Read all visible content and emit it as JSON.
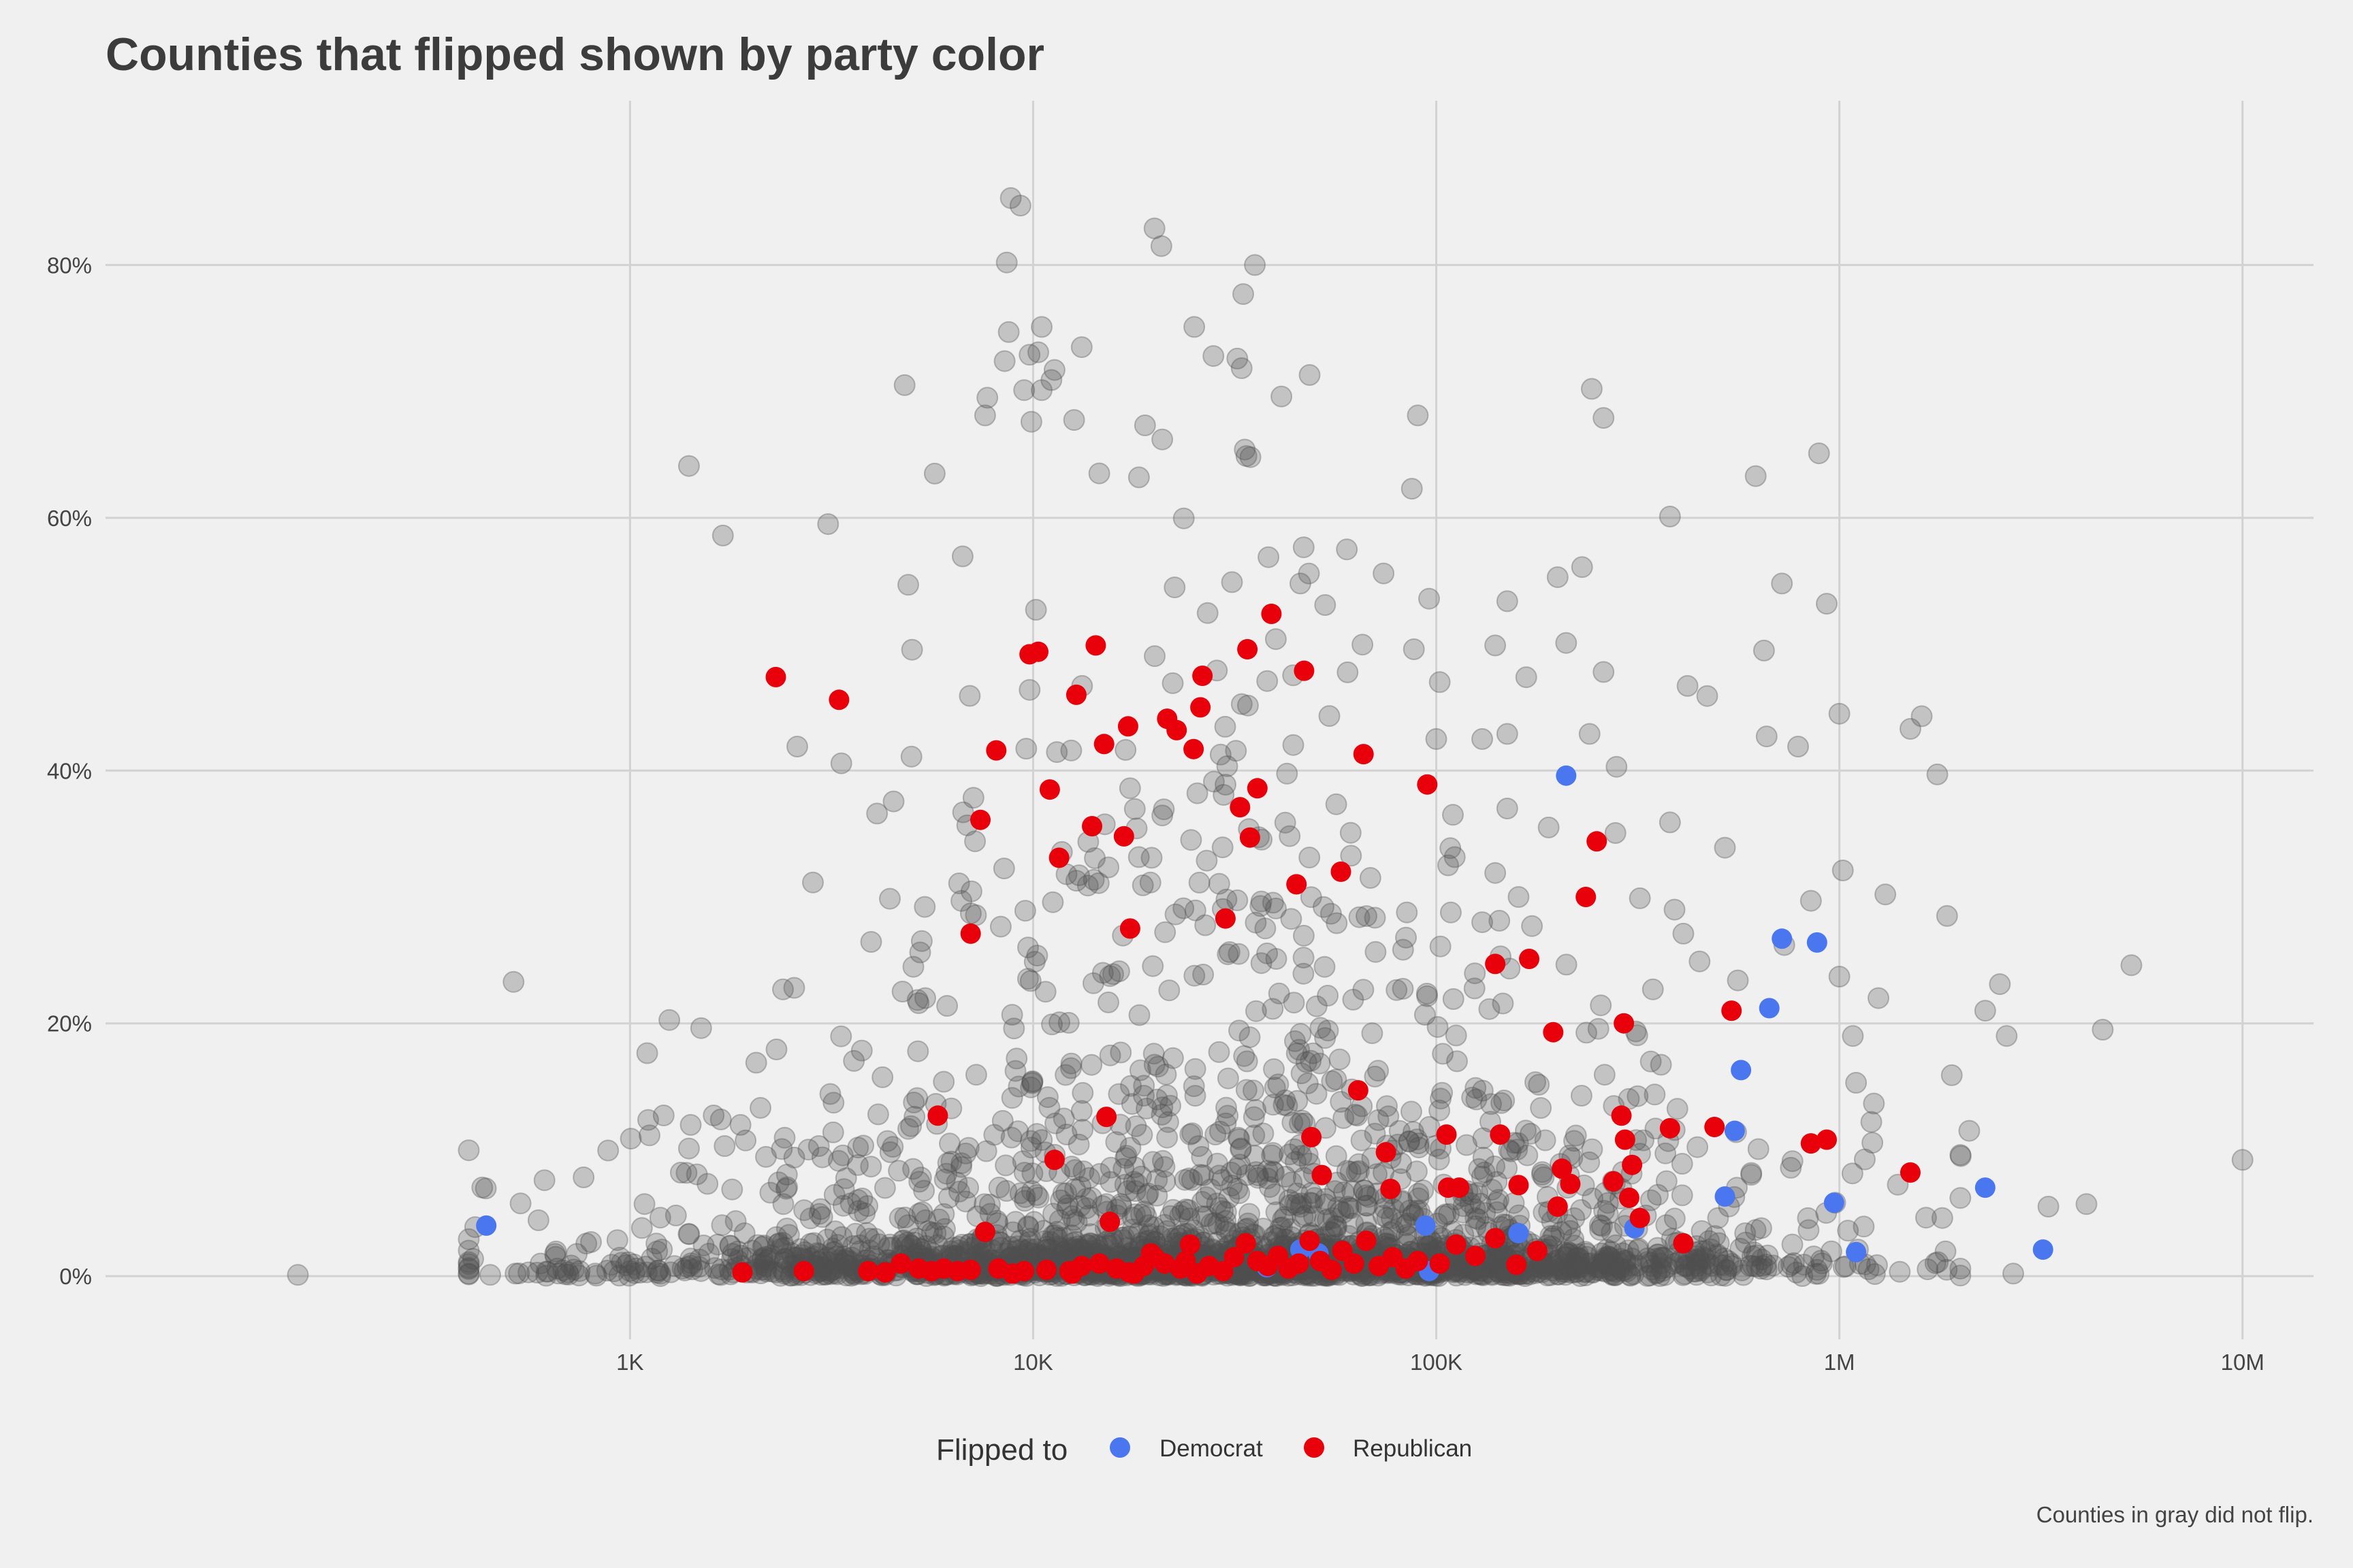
{
  "chart_data": {
    "type": "scatter",
    "title": "Counties that flipped shown by party color",
    "caption": "Counties in gray did not flip.",
    "x_scale": "log10",
    "xlim": [
      50,
      15000000
    ],
    "ylim": [
      -0.05,
      0.93
    ],
    "x_ticks": [
      {
        "value": 1000,
        "label": "1K"
      },
      {
        "value": 10000,
        "label": "10K"
      },
      {
        "value": 100000,
        "label": "100K"
      },
      {
        "value": 1000000,
        "label": "1M"
      },
      {
        "value": 10000000,
        "label": "10M"
      }
    ],
    "y_ticks": [
      {
        "value": 0,
        "label": "0%"
      },
      {
        "value": 0.2,
        "label": "20%"
      },
      {
        "value": 0.4,
        "label": "40%"
      },
      {
        "value": 0.6,
        "label": "60%"
      },
      {
        "value": 0.8,
        "label": "80%"
      }
    ],
    "grid": true,
    "legend": {
      "title": "Flipped to",
      "position": "bottom",
      "entries": [
        {
          "label": "Democrat",
          "color": "#4a76f0"
        },
        {
          "label": "Republican",
          "color": "#e8000b"
        }
      ]
    },
    "colors": {
      "not_flipped": "#505050",
      "Democrat": "#4a76f0",
      "Republican": "#e8000b"
    },
    "series": [
      {
        "name": "Democrat",
        "points": [
          [
            440,
            0.04
          ],
          [
            38000,
            0.007
          ],
          [
            46000,
            0.021
          ],
          [
            51000,
            0.018
          ],
          [
            94000,
            0.04
          ],
          [
            96000,
            0.004
          ],
          [
            160000,
            0.034
          ],
          [
            210000,
            0.396
          ],
          [
            310000,
            0.038
          ],
          [
            520000,
            0.063
          ],
          [
            550000,
            0.115
          ],
          [
            570000,
            0.163
          ],
          [
            670000,
            0.212
          ],
          [
            720000,
            0.267
          ],
          [
            880000,
            0.264
          ],
          [
            970000,
            0.058
          ],
          [
            1100000,
            0.019
          ],
          [
            2300000,
            0.07
          ],
          [
            3200000,
            0.021
          ]
        ]
      },
      {
        "name": "Republican",
        "points": [
          [
            2300,
            0.474
          ],
          [
            3300,
            0.456
          ],
          [
            5800,
            0.127
          ],
          [
            7000,
            0.271
          ],
          [
            7400,
            0.361
          ],
          [
            7600,
            0.035
          ],
          [
            8100,
            0.416
          ],
          [
            9800,
            0.492
          ],
          [
            10300,
            0.494
          ],
          [
            11000,
            0.385
          ],
          [
            11300,
            0.092
          ],
          [
            11600,
            0.331
          ],
          [
            12800,
            0.46
          ],
          [
            14000,
            0.356
          ],
          [
            14300,
            0.499
          ],
          [
            15000,
            0.421
          ],
          [
            15200,
            0.126
          ],
          [
            15500,
            0.043
          ],
          [
            16800,
            0.348
          ],
          [
            17200,
            0.435
          ],
          [
            17400,
            0.275
          ],
          [
            21500,
            0.441
          ],
          [
            22700,
            0.432
          ],
          [
            25000,
            0.417
          ],
          [
            26000,
            0.45
          ],
          [
            26300,
            0.475
          ],
          [
            30000,
            0.283
          ],
          [
            32600,
            0.371
          ],
          [
            34000,
            0.496
          ],
          [
            34500,
            0.347
          ],
          [
            36000,
            0.386
          ],
          [
            39000,
            0.524
          ],
          [
            45000,
            0.31
          ],
          [
            47000,
            0.479
          ],
          [
            49000,
            0.11
          ],
          [
            52000,
            0.08
          ],
          [
            58000,
            0.32
          ],
          [
            64000,
            0.147
          ],
          [
            66000,
            0.413
          ],
          [
            75000,
            0.098
          ],
          [
            77000,
            0.069
          ],
          [
            95000,
            0.389
          ],
          [
            106000,
            0.112
          ],
          [
            107000,
            0.07
          ],
          [
            114000,
            0.07
          ],
          [
            140000,
            0.247
          ],
          [
            144000,
            0.112
          ],
          [
            160000,
            0.072
          ],
          [
            170000,
            0.251
          ],
          [
            195000,
            0.193
          ],
          [
            200000,
            0.055
          ],
          [
            205000,
            0.085
          ],
          [
            215000,
            0.073
          ],
          [
            235000,
            0.3
          ],
          [
            250000,
            0.344
          ],
          [
            275000,
            0.075
          ],
          [
            288000,
            0.127
          ],
          [
            292000,
            0.2
          ],
          [
            294000,
            0.108
          ],
          [
            301000,
            0.062
          ],
          [
            306000,
            0.088
          ],
          [
            320000,
            0.046
          ],
          [
            380000,
            0.117
          ],
          [
            410000,
            0.026
          ],
          [
            490000,
            0.118
          ],
          [
            540000,
            0.21
          ],
          [
            850000,
            0.105
          ],
          [
            930000,
            0.108
          ],
          [
            1500000,
            0.082
          ],
          [
            1900,
            0.003
          ],
          [
            2700,
            0.004
          ],
          [
            3900,
            0.004
          ],
          [
            4300,
            0.003
          ],
          [
            4700,
            0.01
          ],
          [
            5200,
            0.006
          ],
          [
            5600,
            0.004
          ],
          [
            6000,
            0.006
          ],
          [
            6500,
            0.004
          ],
          [
            7000,
            0.005
          ],
          [
            8200,
            0.006
          ],
          [
            9500,
            0.004
          ],
          [
            10800,
            0.005
          ],
          [
            12300,
            0.004
          ],
          [
            13200,
            0.008
          ],
          [
            14600,
            0.01
          ],
          [
            16100,
            0.006
          ],
          [
            17300,
            0.003
          ],
          [
            18800,
            0.008
          ],
          [
            20000,
            0.015
          ],
          [
            21200,
            0.01
          ],
          [
            23200,
            0.006
          ],
          [
            24500,
            0.025
          ],
          [
            27300,
            0.008
          ],
          [
            29600,
            0.004
          ],
          [
            31500,
            0.015
          ],
          [
            33700,
            0.026
          ],
          [
            36000,
            0.012
          ],
          [
            38200,
            0.008
          ],
          [
            40500,
            0.016
          ],
          [
            43000,
            0.006
          ],
          [
            45600,
            0.01
          ],
          [
            48500,
            0.028
          ],
          [
            51500,
            0.012
          ],
          [
            55000,
            0.005
          ],
          [
            58500,
            0.02
          ],
          [
            62500,
            0.01
          ],
          [
            67000,
            0.028
          ],
          [
            72000,
            0.008
          ],
          [
            78000,
            0.015
          ],
          [
            84000,
            0.006
          ],
          [
            90000,
            0.012
          ],
          [
            102000,
            0.01
          ],
          [
            112000,
            0.025
          ],
          [
            125000,
            0.016
          ],
          [
            140000,
            0.03
          ],
          [
            158000,
            0.009
          ],
          [
            178000,
            0.02
          ],
          [
            12500,
            0.002
          ],
          [
            17800,
            0.002
          ],
          [
            25500,
            0.002
          ],
          [
            8900,
            0.002
          ],
          [
            19600,
            0.018
          ],
          [
            23900,
            0.012
          ]
        ]
      }
    ],
    "background_series": {
      "name": "",
      "x_distribution": {
        "log10_mean": 4.45,
        "log10_sd": 0.65
      },
      "sample_points": [
        [
          8800,
          0.853
        ],
        [
          9300,
          0.847
        ],
        [
          8600,
          0.802
        ],
        [
          20000,
          0.829
        ],
        [
          20800,
          0.815
        ],
        [
          33200,
          0.777
        ],
        [
          8700,
          0.747
        ],
        [
          10500,
          0.751
        ],
        [
          10300,
          0.731
        ],
        [
          11300,
          0.717
        ],
        [
          11100,
          0.709
        ],
        [
          13200,
          0.735
        ],
        [
          25100,
          0.751
        ],
        [
          28000,
          0.728
        ],
        [
          32100,
          0.726
        ],
        [
          8500,
          0.724
        ],
        [
          9800,
          0.729
        ],
        [
          4800,
          0.705
        ],
        [
          7700,
          0.695
        ],
        [
          7600,
          0.681
        ],
        [
          9500,
          0.701
        ],
        [
          10500,
          0.701
        ],
        [
          9900,
          0.676
        ],
        [
          41300,
          0.696
        ],
        [
          48500,
          0.713
        ],
        [
          243000,
          0.702
        ],
        [
          260000,
          0.679
        ],
        [
          90000,
          0.681
        ],
        [
          1400,
          0.641
        ],
        [
          1700,
          0.586
        ],
        [
          3100,
          0.595
        ],
        [
          620000,
          0.633
        ],
        [
          890000,
          0.651
        ],
        [
          380000,
          0.601
        ],
        [
          5700,
          0.635
        ],
        [
          33500,
          0.654
        ],
        [
          34600,
          0.648
        ],
        [
          18300,
          0.632
        ],
        [
          87000,
          0.623
        ],
        [
          4900,
          0.547
        ],
        [
          1400,
          0.101
        ],
        [
          4100,
          0.366
        ],
        [
          2600,
          0.419
        ],
        [
          5200,
          0.216
        ],
        [
          5400,
          0.22
        ],
        [
          3000,
          0.094
        ],
        [
          2400,
          0.057
        ],
        [
          1300,
          0.048
        ],
        [
          800,
          0.027
        ],
        [
          150,
          0.001
        ],
        [
          450,
          0.001
        ],
        [
          520,
          0.002
        ],
        [
          560,
          0.003
        ],
        [
          600,
          0.01
        ],
        [
          660,
          0.006
        ],
        [
          700,
          0.003
        ],
        [
          750,
          0.004
        ],
        [
          820,
          0.002
        ],
        [
          900,
          0.009
        ],
        [
          1000,
          0.004
        ],
        [
          1100,
          0.003
        ],
        [
          1200,
          0.021
        ],
        [
          1350,
          0.006
        ],
        [
          1500,
          0.004
        ],
        [
          1650,
          0.025
        ],
        [
          1800,
          0.003
        ],
        [
          10000000,
          0.092
        ],
        [
          5300000,
          0.246
        ],
        [
          4500000,
          0.195
        ],
        [
          4100000,
          0.057
        ],
        [
          3300000,
          0.055
        ],
        [
          2600000,
          0.19
        ],
        [
          2500000,
          0.231
        ],
        [
          2300000,
          0.21
        ],
        [
          2100000,
          0.115
        ],
        [
          1850000,
          0.285
        ],
        [
          1900000,
          0.159
        ],
        [
          1750000,
          0.397
        ],
        [
          1600000,
          0.443
        ],
        [
          1500000,
          0.433
        ],
        [
          1250000,
          0.22
        ],
        [
          1300000,
          0.302
        ],
        [
          1000000,
          0.445
        ],
        [
          1020000,
          0.321
        ],
        [
          930000,
          0.532
        ],
        [
          1080000,
          0.19
        ],
        [
          720000,
          0.548
        ],
        [
          650000,
          0.495
        ],
        [
          660000,
          0.427
        ],
        [
          790000,
          0.419
        ],
        [
          470000,
          0.459
        ],
        [
          420000,
          0.467
        ],
        [
          380000,
          0.359
        ],
        [
          520000,
          0.339
        ],
        [
          280000,
          0.403
        ],
        [
          260000,
          0.478
        ],
        [
          230000,
          0.561
        ],
        [
          200000,
          0.553
        ],
        [
          210000,
          0.501
        ],
        [
          240000,
          0.429
        ],
        [
          150000,
          0.534
        ],
        [
          150000,
          0.429
        ],
        [
          140000,
          0.499
        ],
        [
          130000,
          0.425
        ],
        [
          102000,
          0.47
        ],
        [
          100000,
          0.425
        ],
        [
          96000,
          0.536
        ],
        [
          88000,
          0.496
        ],
        [
          74000,
          0.556
        ],
        [
          60000,
          0.575
        ],
        [
          53000,
          0.531
        ],
        [
          46000,
          0.548
        ],
        [
          40000,
          0.504
        ],
        [
          150000,
          0.37
        ],
        [
          160000,
          0.3
        ],
        [
          140000,
          0.319
        ],
        [
          130000,
          0.28
        ],
        [
          110000,
          0.365
        ],
        [
          190000,
          0.355
        ],
        [
          320000,
          0.299
        ],
        [
          390000,
          0.29
        ],
        [
          410000,
          0.271
        ],
        [
          450000,
          0.249
        ],
        [
          560000,
          0.234
        ],
        [
          730000,
          0.262
        ],
        [
          850000,
          0.297
        ],
        [
          1000000,
          0.237
        ],
        [
          1200000,
          0.122
        ],
        [
          1100000,
          0.153
        ],
        [
          1800000,
          0.046
        ],
        [
          2000000,
          0.095
        ],
        [
          2700000,
          0.002
        ],
        [
          880000,
          0.005
        ],
        [
          1050000,
          0.036
        ],
        [
          760000,
          0.009
        ],
        [
          640000,
          0.038
        ],
        [
          530000,
          0.012
        ],
        [
          500000,
          0.046
        ],
        [
          460000,
          0.015
        ],
        [
          400000,
          0.019
        ]
      ]
    }
  }
}
